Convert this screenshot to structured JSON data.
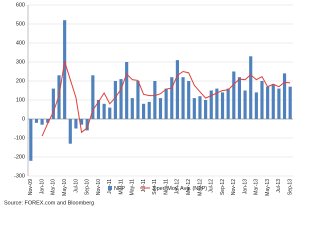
{
  "chart_data": {
    "type": "bar-line",
    "categories": [
      "Nov-09",
      null,
      "Jan-10",
      null,
      "Mar-10",
      null,
      "May-10",
      null,
      "Jul-10",
      null,
      "Sep-10",
      null,
      "Nov-10",
      null,
      "Jan-11",
      null,
      "Mar-11",
      null,
      "May-11",
      null,
      "Jul-11",
      null,
      "Sep-11",
      null,
      "Nov-11",
      null,
      "Jan-12",
      null,
      "Mar-12",
      null,
      "May-12",
      null,
      "Jul-12",
      null,
      "Sep-12",
      null,
      "Nov-12",
      null,
      "Jan-13",
      null,
      "Mar-13",
      null,
      "May-13",
      null,
      "Jul-13",
      null,
      "Sep-13"
    ],
    "series": [
      {
        "name": "NFP",
        "type": "bar",
        "color": "#4f81bd",
        "values": [
          -220,
          -20,
          -30,
          -20,
          160,
          230,
          520,
          -130,
          -50,
          -30,
          -60,
          230,
          100,
          80,
          60,
          200,
          210,
          300,
          110,
          200,
          80,
          90,
          200,
          110,
          160,
          220,
          310,
          220,
          200,
          110,
          120,
          100,
          150,
          160,
          140,
          160,
          250,
          220,
          150,
          330,
          140,
          200,
          170,
          180,
          160,
          240,
          170
        ]
      },
      {
        "name": "3 per. Mov. Avg. (NFP)",
        "type": "line",
        "color": "#e0403a",
        "values": [
          null,
          null,
          -90,
          -23,
          37,
          123,
          303,
          207,
          113,
          -70,
          -47,
          47,
          90,
          137,
          80,
          113,
          157,
          237,
          207,
          203,
          130,
          123,
          123,
          133,
          157,
          163,
          230,
          250,
          243,
          177,
          143,
          110,
          123,
          137,
          150,
          153,
          183,
          210,
          207,
          233,
          207,
          223,
          170,
          183,
          170,
          193,
          190
        ]
      }
    ],
    "ylim": [
      -300,
      600
    ],
    "yticks": [
      -300,
      -200,
      -100,
      0,
      100,
      200,
      300,
      400,
      500,
      600
    ],
    "grid": true,
    "source": "Source: FOREX.com and Bloomberg"
  }
}
